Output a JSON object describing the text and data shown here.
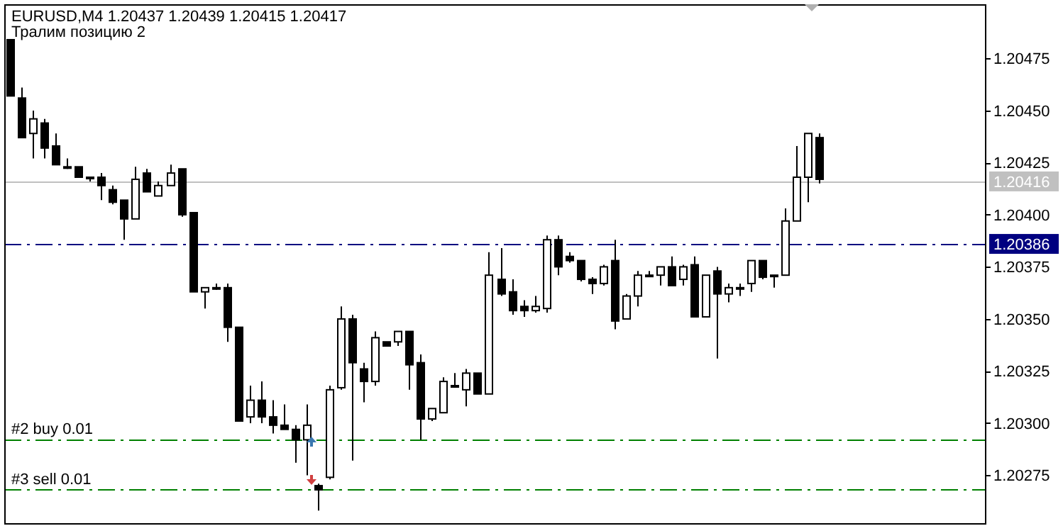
{
  "chart_data": {
    "type": "candlestick",
    "title": "EURUSD,M4 1.20437 1.20439 1.20415 1.20417",
    "subtitle": "Тралим позицию 2",
    "categories": [
      null,
      null,
      null,
      null,
      null,
      null,
      null,
      null,
      null,
      null,
      null,
      null,
      null,
      null,
      null,
      null,
      null,
      null,
      null,
      null,
      null,
      null,
      null,
      null,
      null,
      null,
      null,
      null,
      null,
      null,
      null,
      null,
      null,
      null,
      null,
      null,
      null,
      null,
      null,
      null,
      null,
      null,
      null,
      null,
      null,
      null,
      null,
      null,
      null,
      null,
      null,
      null,
      null,
      null,
      null,
      null,
      null,
      null,
      null,
      null,
      null,
      null,
      null,
      null,
      null,
      null,
      null,
      null,
      null,
      null,
      null,
      null,
      null,
      null,
      null,
      null,
      null,
      null,
      null,
      null,
      null,
      null,
      null,
      null,
      null,
      null
    ],
    "ohlc": [
      [
        1.20484,
        1.20484,
        1.20457,
        1.20457
      ],
      [
        1.20456,
        1.20461,
        1.20437,
        1.20437
      ],
      [
        1.20439,
        1.2045,
        1.20427,
        1.20446
      ],
      [
        1.20444,
        1.20446,
        1.20427,
        1.20432
      ],
      [
        1.20433,
        1.20439,
        1.20424,
        1.20424
      ],
      [
        1.20423,
        1.20427,
        1.20422,
        1.20423
      ],
      [
        1.20423,
        1.20423,
        1.20418,
        1.20418
      ],
      [
        1.20418,
        1.20418,
        1.20416,
        1.20418
      ],
      [
        1.20418,
        1.2042,
        1.20407,
        1.20414
      ],
      [
        1.20412,
        1.20414,
        1.20405,
        1.20406
      ],
      [
        1.20407,
        1.20407,
        1.20388,
        1.20398
      ],
      [
        1.20398,
        1.20423,
        1.20398,
        1.20417
      ],
      [
        1.2042,
        1.20422,
        1.20411,
        1.20411
      ],
      [
        1.20409,
        1.20416,
        1.20409,
        1.20414
      ],
      [
        1.20414,
        1.20424,
        1.20414,
        1.2042
      ],
      [
        1.20422,
        1.20422,
        1.20399,
        1.204
      ],
      [
        1.20401,
        1.20401,
        1.20363,
        1.20363
      ],
      [
        1.20363,
        1.20365,
        1.20355,
        1.20365
      ],
      [
        1.20365,
        1.20367,
        1.20364,
        1.20365
      ],
      [
        1.20365,
        1.20367,
        1.20339,
        1.20346
      ],
      [
        1.20346,
        1.20346,
        1.20301,
        1.20301
      ],
      [
        1.20303,
        1.20318,
        1.203,
        1.20311
      ],
      [
        1.20311,
        1.2032,
        1.203,
        1.20303
      ],
      [
        1.20303,
        1.20311,
        1.20295,
        1.20299
      ],
      [
        1.20299,
        1.20309,
        1.20297,
        1.20297
      ],
      [
        1.20297,
        1.20299,
        1.20281,
        1.20292
      ],
      [
        1.20292,
        1.20309,
        1.20275,
        1.20299
      ],
      [
        1.2027,
        1.20271,
        1.20258,
        1.20268
      ],
      [
        1.20274,
        1.20318,
        1.20273,
        1.20316
      ],
      [
        1.20317,
        1.20356,
        1.20316,
        1.2035
      ],
      [
        1.2035,
        1.20352,
        1.20282,
        1.20329
      ],
      [
        1.20326,
        1.20329,
        1.2031,
        1.2032
      ],
      [
        1.2032,
        1.20344,
        1.20318,
        1.20341
      ],
      [
        1.20339,
        1.20339,
        1.20337,
        1.20337
      ],
      [
        1.20339,
        1.20344,
        1.20337,
        1.20344
      ],
      [
        1.20344,
        1.20344,
        1.20316,
        1.20328
      ],
      [
        1.20329,
        1.20333,
        1.20292,
        1.20302
      ],
      [
        1.20302,
        1.20307,
        1.20301,
        1.20307
      ],
      [
        1.20305,
        1.20322,
        1.20305,
        1.2032
      ],
      [
        1.20318,
        1.20324,
        1.20317,
        1.20318
      ],
      [
        1.20316,
        1.20326,
        1.20308,
        1.20324
      ],
      [
        1.20324,
        1.20324,
        1.20314,
        1.20314
      ],
      [
        1.20314,
        1.20382,
        1.20314,
        1.20371
      ],
      [
        1.20369,
        1.20384,
        1.20361,
        1.20362
      ],
      [
        1.20363,
        1.20369,
        1.20352,
        1.20354
      ],
      [
        1.20356,
        1.20359,
        1.20351,
        1.20354
      ],
      [
        1.20354,
        1.20361,
        1.20353,
        1.20356
      ],
      [
        1.20355,
        1.2039,
        1.20353,
        1.20388
      ],
      [
        1.20388,
        1.2039,
        1.20371,
        1.20375
      ],
      [
        1.2038,
        1.20382,
        1.20377,
        1.20378
      ],
      [
        1.20378,
        1.20378,
        1.20368,
        1.20369
      ],
      [
        1.20369,
        1.2037,
        1.20362,
        1.20367
      ],
      [
        1.20367,
        1.20376,
        1.20366,
        1.20375
      ],
      [
        1.20378,
        1.20388,
        1.20345,
        1.20349
      ],
      [
        1.2035,
        1.20362,
        1.2035,
        1.20361
      ],
      [
        1.20361,
        1.20373,
        1.20356,
        1.20371
      ],
      [
        1.20371,
        1.20373,
        1.20371,
        1.20371
      ],
      [
        1.20371,
        1.20375,
        1.20366,
        1.20375
      ],
      [
        1.20375,
        1.2038,
        1.20366,
        1.20366
      ],
      [
        1.20369,
        1.20376,
        1.20366,
        1.20375
      ],
      [
        1.20376,
        1.2038,
        1.20351,
        1.20351
      ],
      [
        1.20351,
        1.20371,
        1.20351,
        1.20371
      ],
      [
        1.20373,
        1.20375,
        1.20331,
        1.20362
      ],
      [
        1.20362,
        1.20367,
        1.20358,
        1.20365
      ],
      [
        1.20365,
        1.20367,
        1.20361,
        1.20365
      ],
      [
        1.20367,
        1.20378,
        1.20363,
        1.20378
      ],
      [
        1.20378,
        1.20378,
        1.20369,
        1.2037
      ],
      [
        1.20371,
        1.20371,
        1.20365,
        1.20371
      ],
      [
        1.20371,
        1.20403,
        1.20371,
        1.20397
      ],
      [
        1.20397,
        1.20433,
        1.20397,
        1.20418
      ],
      [
        1.20418,
        1.20439,
        1.20406,
        1.20439
      ],
      [
        1.20437,
        1.20439,
        1.20415,
        1.20417
      ],
      null,
      null,
      null,
      null,
      null,
      null,
      null,
      null,
      null,
      null,
      null,
      null,
      null,
      null
    ],
    "ylim": [
      1.20252,
      1.20501
    ],
    "yticks": [
      {
        "value": 1.20275,
        "label": "1.20275"
      },
      {
        "value": 1.203,
        "label": "1.20300"
      },
      {
        "value": 1.20325,
        "label": "1.20325"
      },
      {
        "value": 1.2035,
        "label": "1.20350"
      },
      {
        "value": 1.20375,
        "label": "1.20375"
      },
      {
        "value": 1.204,
        "label": "1.20400"
      },
      {
        "value": 1.20425,
        "label": "1.20425"
      },
      {
        "value": 1.2045,
        "label": "1.20450"
      },
      {
        "value": 1.20475,
        "label": "1.20475"
      }
    ],
    "tick_labels": "y",
    "ref_lines": [
      {
        "axis": "y",
        "value": 1.20416,
        "label": "1.20416",
        "color": "#c0c0c0",
        "line_style": "solid"
      },
      {
        "axis": "y",
        "value": 1.20386,
        "label": "1.20386",
        "color": "#000080",
        "line_style": "dashed"
      },
      {
        "axis": "y",
        "value": 1.20292,
        "label": "#2 buy 0.01",
        "color": "#008000",
        "line_style": "dashed"
      },
      {
        "axis": "y",
        "value": 1.20268,
        "label": "#3 sell 0.01",
        "color": "#008000",
        "line_style": "dashed"
      }
    ]
  }
}
